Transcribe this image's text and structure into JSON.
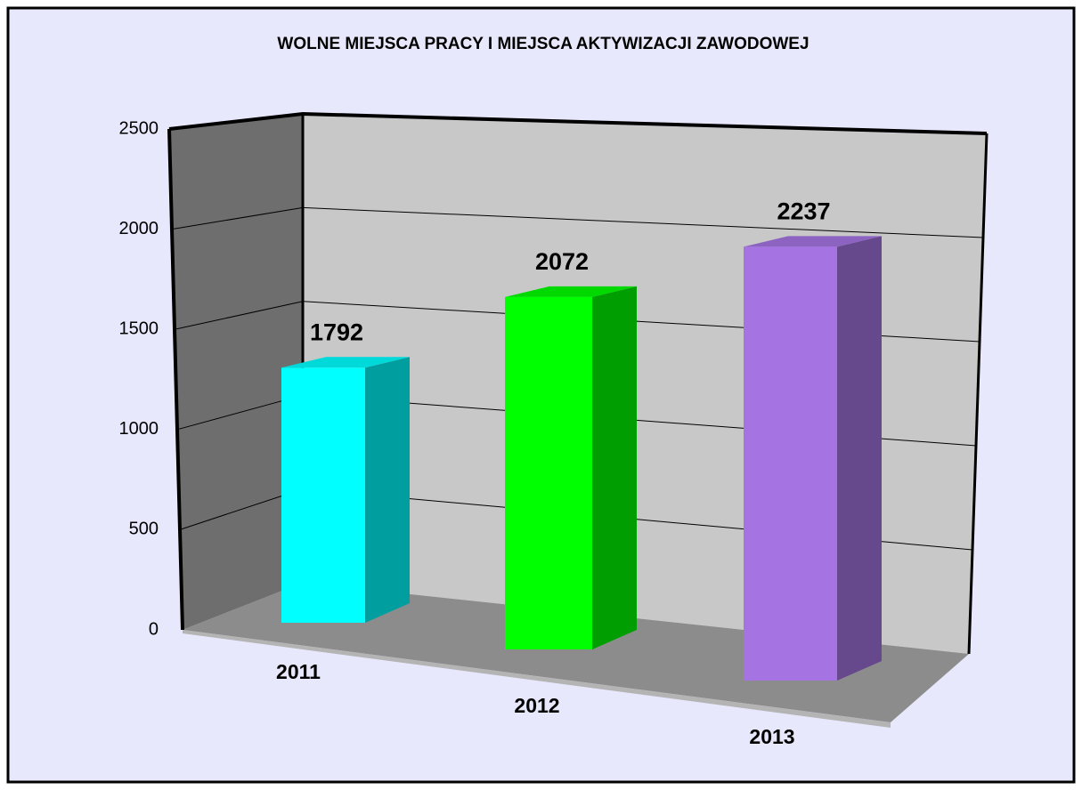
{
  "chart_data": {
    "type": "bar",
    "title": "WOLNE MIEJSCA PRACY I MIEJSCA AKTYWIZACJI ZAWODOWEJ",
    "categories": [
      "2011",
      "2012",
      "2013"
    ],
    "values": [
      1792,
      2072,
      2237
    ],
    "colors": [
      "#00ffff",
      "#00ff00",
      "#a574e2"
    ],
    "ylim": [
      0,
      2500
    ],
    "yticks": [
      0,
      500,
      1000,
      1500,
      2000,
      2500
    ],
    "grid": true
  }
}
